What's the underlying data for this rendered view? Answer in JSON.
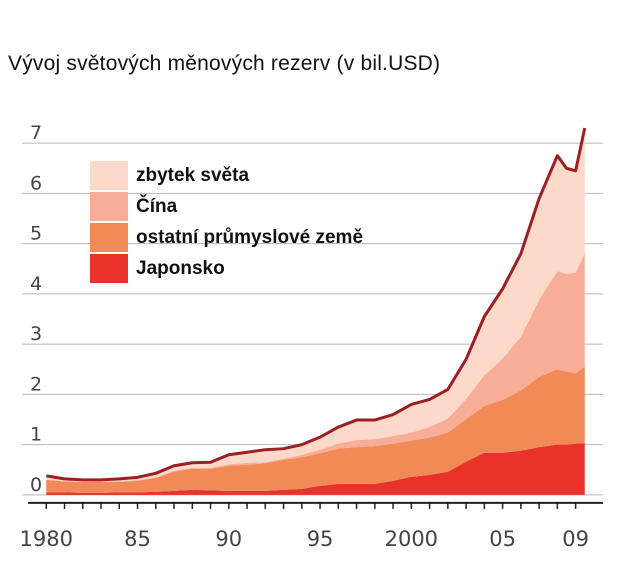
{
  "chart_data": {
    "type": "area",
    "stacked": true,
    "title": "Vývoj světových měnových rezerv (v bil.USD)",
    "xlabel": "",
    "ylabel": "",
    "xlim": [
      1979,
      2010.5
    ],
    "ylim": [
      -0.3,
      7.5
    ],
    "yticks": [
      0,
      1,
      2,
      3,
      4,
      5,
      6,
      7
    ],
    "xticks": [
      {
        "value": 1980,
        "label": "1980"
      },
      {
        "value": 1985,
        "label": "85"
      },
      {
        "value": 1990,
        "label": "90"
      },
      {
        "value": 1995,
        "label": "95"
      },
      {
        "value": 2000,
        "label": "2000"
      },
      {
        "value": 2005,
        "label": "05"
      },
      {
        "value": 2009,
        "label": "09"
      }
    ],
    "grid": true,
    "legend_position": "top-left",
    "x": [
      1980,
      1981,
      1982,
      1983,
      1984,
      1985,
      1986,
      1987,
      1988,
      1989,
      1990,
      1991,
      1992,
      1993,
      1994,
      1995,
      1996,
      1997,
      1998,
      1999,
      2000,
      2001,
      2002,
      2003,
      2004,
      2005,
      2006,
      2007,
      2008,
      2008.5,
      2009,
      2009.5
    ],
    "series": [
      {
        "name": "Japonsko",
        "color": "#e8322a",
        "values": [
          0.05,
          0.05,
          0.04,
          0.04,
          0.05,
          0.05,
          0.06,
          0.08,
          0.1,
          0.09,
          0.08,
          0.08,
          0.08,
          0.1,
          0.12,
          0.18,
          0.22,
          0.22,
          0.22,
          0.28,
          0.36,
          0.4,
          0.46,
          0.66,
          0.84,
          0.84,
          0.88,
          0.95,
          1.0,
          1.0,
          1.02,
          1.03
        ]
      },
      {
        "name": "ostatní průmyslové země",
        "color": "#f28a57",
        "values": [
          0.25,
          0.22,
          0.22,
          0.22,
          0.21,
          0.23,
          0.28,
          0.38,
          0.42,
          0.43,
          0.5,
          0.52,
          0.55,
          0.6,
          0.63,
          0.65,
          0.7,
          0.73,
          0.75,
          0.74,
          0.72,
          0.74,
          0.78,
          0.85,
          0.93,
          1.05,
          1.2,
          1.4,
          1.5,
          1.45,
          1.4,
          1.52
        ]
      },
      {
        "name": "Čína",
        "color": "#f7ad97",
        "values": [
          0.0,
          0.0,
          0.0,
          0.01,
          0.01,
          0.01,
          0.01,
          0.02,
          0.02,
          0.02,
          0.03,
          0.04,
          0.02,
          0.02,
          0.05,
          0.07,
          0.1,
          0.14,
          0.14,
          0.15,
          0.16,
          0.21,
          0.28,
          0.4,
          0.61,
          0.82,
          1.07,
          1.53,
          1.95,
          1.95,
          2.0,
          2.25
        ]
      },
      {
        "name": "zbytek světa",
        "color": "#fcd9c9",
        "values": [
          0.08,
          0.05,
          0.04,
          0.03,
          0.05,
          0.06,
          0.08,
          0.1,
          0.1,
          0.11,
          0.19,
          0.21,
          0.25,
          0.2,
          0.2,
          0.25,
          0.33,
          0.4,
          0.38,
          0.43,
          0.56,
          0.55,
          0.58,
          0.79,
          1.17,
          1.39,
          1.65,
          2.02,
          2.3,
          2.1,
          2.03,
          2.5
        ]
      }
    ]
  }
}
